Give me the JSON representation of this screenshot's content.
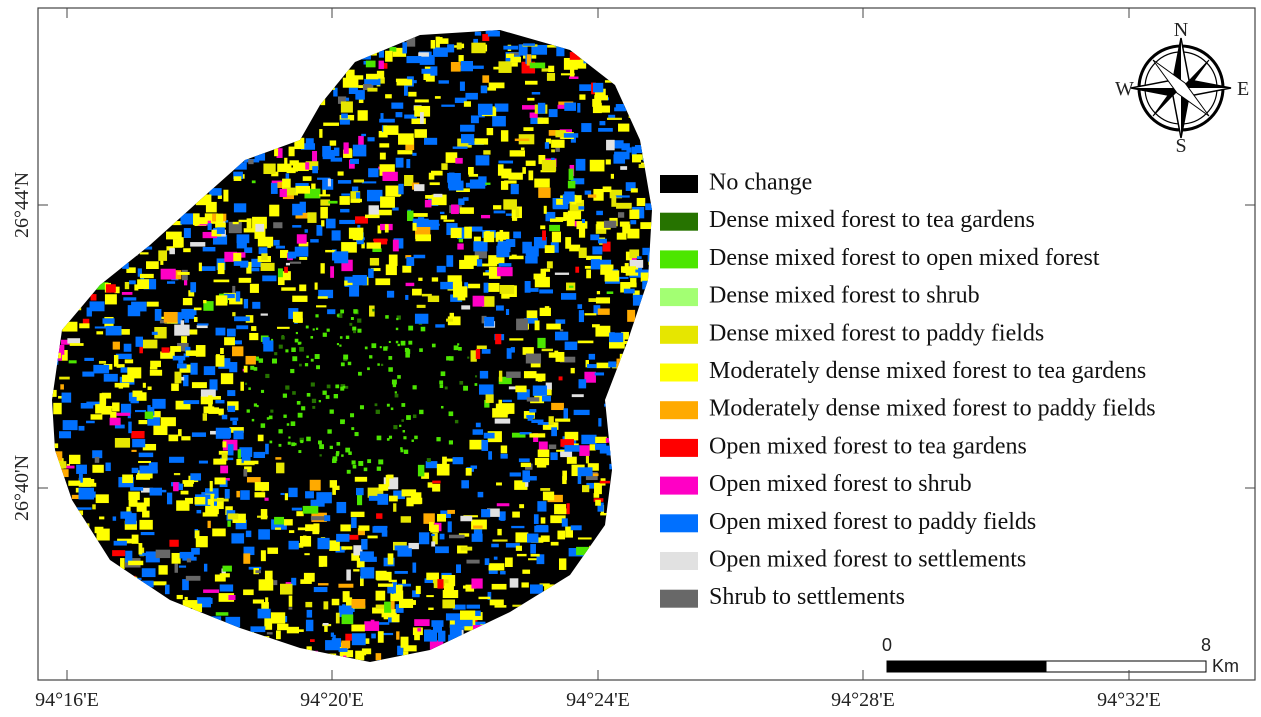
{
  "map": {
    "x_labels": [
      "94°16'E",
      "94°20'E",
      "94°24'E",
      "94°28'E",
      "94°32'E"
    ],
    "y_labels": [
      "26°44'N",
      "26°40'N"
    ],
    "compass": {
      "n": "N",
      "s": "S",
      "e": "E",
      "w": "W"
    },
    "legend": [
      {
        "label": "No change",
        "color": "#000000"
      },
      {
        "label": "Dense mixed forest to tea gardens",
        "color": "#267300"
      },
      {
        "label": "Dense mixed forest to open mixed forest",
        "color": "#4ce600"
      },
      {
        "label": "Dense mixed forest to shrub",
        "color": "#a3ff73"
      },
      {
        "label": "Dense mixed forest to paddy fields",
        "color": "#e6e600"
      },
      {
        "label": "Moderately dense mixed forest to tea gardens",
        "color": "#ffff00"
      },
      {
        "label": "Moderately dense mixed forest to paddy fields",
        "color": "#ffaa00"
      },
      {
        "label": "Open mixed forest to tea gardens",
        "color": "#ff0000"
      },
      {
        "label": "Open mixed forest to shrub",
        "color": "#ff00c5"
      },
      {
        "label": "Open mixed forest to paddy fields",
        "color": "#0070ff"
      },
      {
        "label": "Open mixed forest to settlements",
        "color": "#e1e1e1"
      },
      {
        "label": "Shrub to settlements",
        "color": "#686868"
      }
    ],
    "scale_bar": {
      "start": "0",
      "end": "8",
      "unit": "Km"
    }
  }
}
